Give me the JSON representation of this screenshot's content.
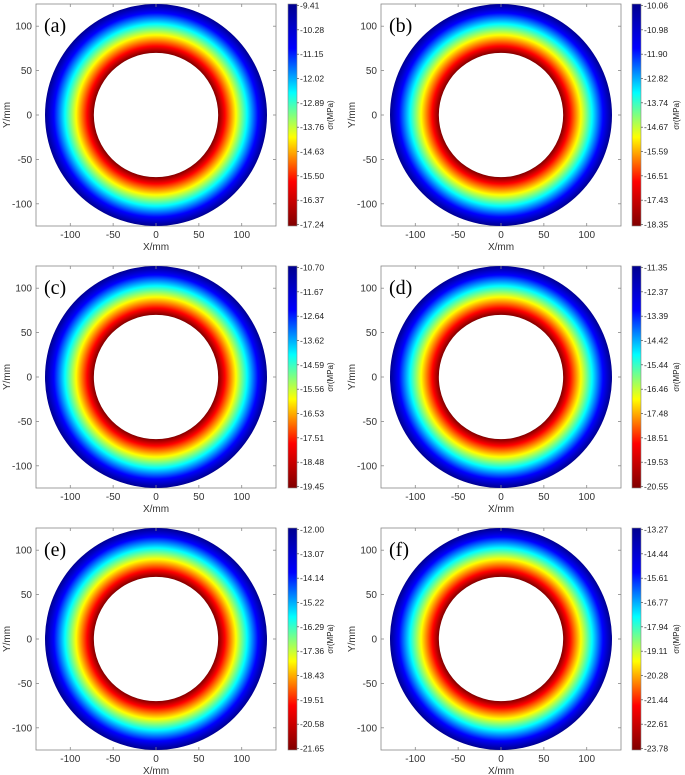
{
  "chart_data": [
    {
      "type": "heatmap",
      "panel_label": "(a)",
      "xlabel": "X/mm",
      "ylabel": "Y/mm",
      "xlim": [
        -140,
        140
      ],
      "ylim": [
        -125,
        125
      ],
      "xticks": [
        -100,
        -50,
        0,
        50,
        100
      ],
      "yticks": [
        -100,
        -50,
        0,
        50,
        100
      ],
      "inner_radius_mm": 70,
      "outer_radius_mm": 125,
      "colorbar": {
        "label": "σr(MPa)",
        "ticks": [
          "-9.41",
          "-10.28",
          "-11.15",
          "-12.02",
          "-12.89",
          "-13.76",
          "-14.63",
          "-15.50",
          "-16.37",
          "-17.24"
        ]
      }
    },
    {
      "type": "heatmap",
      "panel_label": "(b)",
      "xlabel": "X/mm",
      "ylabel": "Y/mm",
      "xlim": [
        -140,
        140
      ],
      "ylim": [
        -125,
        125
      ],
      "xticks": [
        -100,
        -50,
        0,
        50,
        100
      ],
      "yticks": [
        -100,
        -50,
        0,
        50,
        100
      ],
      "inner_radius_mm": 70,
      "outer_radius_mm": 125,
      "colorbar": {
        "label": "σr(MPa)",
        "ticks": [
          "-10.06",
          "-10.98",
          "-11.90",
          "-12.82",
          "-13.74",
          "-14.67",
          "-15.59",
          "-16.51",
          "-17.43",
          "-18.35"
        ]
      }
    },
    {
      "type": "heatmap",
      "panel_label": "(c)",
      "xlabel": "X/mm",
      "ylabel": "Y/mm",
      "xlim": [
        -140,
        140
      ],
      "ylim": [
        -125,
        125
      ],
      "xticks": [
        -100,
        -50,
        0,
        50,
        100
      ],
      "yticks": [
        -100,
        -50,
        0,
        50,
        100
      ],
      "inner_radius_mm": 70,
      "outer_radius_mm": 125,
      "colorbar": {
        "label": "σr(MPa)",
        "ticks": [
          "-10.70",
          "-11.67",
          "-12.64",
          "-13.62",
          "-14.59",
          "-15.56",
          "-16.53",
          "-17.51",
          "-18.48",
          "-19.45"
        ]
      }
    },
    {
      "type": "heatmap",
      "panel_label": "(d)",
      "xlabel": "X/mm",
      "ylabel": "Y/mm",
      "xlim": [
        -140,
        140
      ],
      "ylim": [
        -125,
        125
      ],
      "xticks": [
        -100,
        -50,
        0,
        50,
        100
      ],
      "yticks": [
        -100,
        -50,
        0,
        50,
        100
      ],
      "inner_radius_mm": 70,
      "outer_radius_mm": 125,
      "colorbar": {
        "label": "σr(MPa)",
        "ticks": [
          "-11.35",
          "-12.37",
          "-13.39",
          "-14.42",
          "-15.44",
          "-16.46",
          "-17.48",
          "-18.51",
          "-19.53",
          "-20.55"
        ]
      }
    },
    {
      "type": "heatmap",
      "panel_label": "(e)",
      "xlabel": "X/mm",
      "ylabel": "Y/mm",
      "xlim": [
        -140,
        140
      ],
      "ylim": [
        -125,
        125
      ],
      "xticks": [
        -100,
        -50,
        0,
        50,
        100
      ],
      "yticks": [
        -100,
        -50,
        0,
        50,
        100
      ],
      "inner_radius_mm": 70,
      "outer_radius_mm": 125,
      "colorbar": {
        "label": "σr(MPa)",
        "ticks": [
          "-12.00",
          "-13.07",
          "-14.14",
          "-15.22",
          "-16.29",
          "-17.36",
          "-18.43",
          "-19.51",
          "-20.58",
          "-21.65"
        ]
      }
    },
    {
      "type": "heatmap",
      "panel_label": "(f)",
      "xlabel": "X/mm",
      "ylabel": "Y/mm",
      "xlim": [
        -140,
        140
      ],
      "ylim": [
        -125,
        125
      ],
      "xticks": [
        -100,
        -50,
        0,
        50,
        100
      ],
      "yticks": [
        -100,
        -50,
        0,
        50,
        100
      ],
      "inner_radius_mm": 70,
      "outer_radius_mm": 125,
      "colorbar": {
        "label": "σr(MPa)",
        "ticks": [
          "-13.27",
          "-14.44",
          "-15.61",
          "-16.77",
          "-17.94",
          "-19.11",
          "-20.28",
          "-21.44",
          "-22.61",
          "-23.78"
        ]
      }
    }
  ],
  "colors": {
    "colormap_top_to_bottom": [
      "#00008f",
      "#0000ff",
      "#00ffff",
      "#ffff00",
      "#ff0000",
      "#800000"
    ],
    "axes_edge": "#888888"
  }
}
